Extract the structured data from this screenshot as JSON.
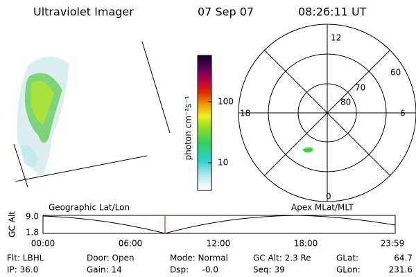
{
  "header": {
    "title": "Ultraviolet Imager",
    "date": "07 Sep 07",
    "time": "08:26:11 UT"
  },
  "colorbar": {
    "ticks": [
      "100",
      "10"
    ],
    "label": "photon cm⁻²s⁻¹"
  },
  "polar": {
    "labels": [
      "12",
      "0",
      "18",
      "6",
      "60",
      "70",
      "80"
    ]
  },
  "altitude_plot": {
    "left_title": "Geographic Lat/Lon",
    "right_title": "Apex MLat/MLT",
    "ylabel": "GC Alt",
    "yticks": [
      "9.0",
      "1.8"
    ],
    "xticks": [
      "00:00",
      "06:00",
      "12:00",
      "18:00",
      "23:59"
    ]
  },
  "info": {
    "rows": [
      [
        {
          "label": "Flt: LBHL"
        },
        {
          "label": "Door: Open"
        },
        {
          "label": "Mode: Normal"
        },
        {
          "label": "GC Alt: 2.3 Re"
        },
        {
          "label": "GLat:",
          "value": "64.7"
        }
      ],
      [
        {
          "label": "IP: 36.0"
        },
        {
          "label": "Gain: 14"
        },
        {
          "label": "Dsp:",
          "value": "-0.0"
        },
        {
          "label": "Seq: 39"
        },
        {
          "label": "GLon:",
          "value": "231.6"
        }
      ]
    ]
  }
}
